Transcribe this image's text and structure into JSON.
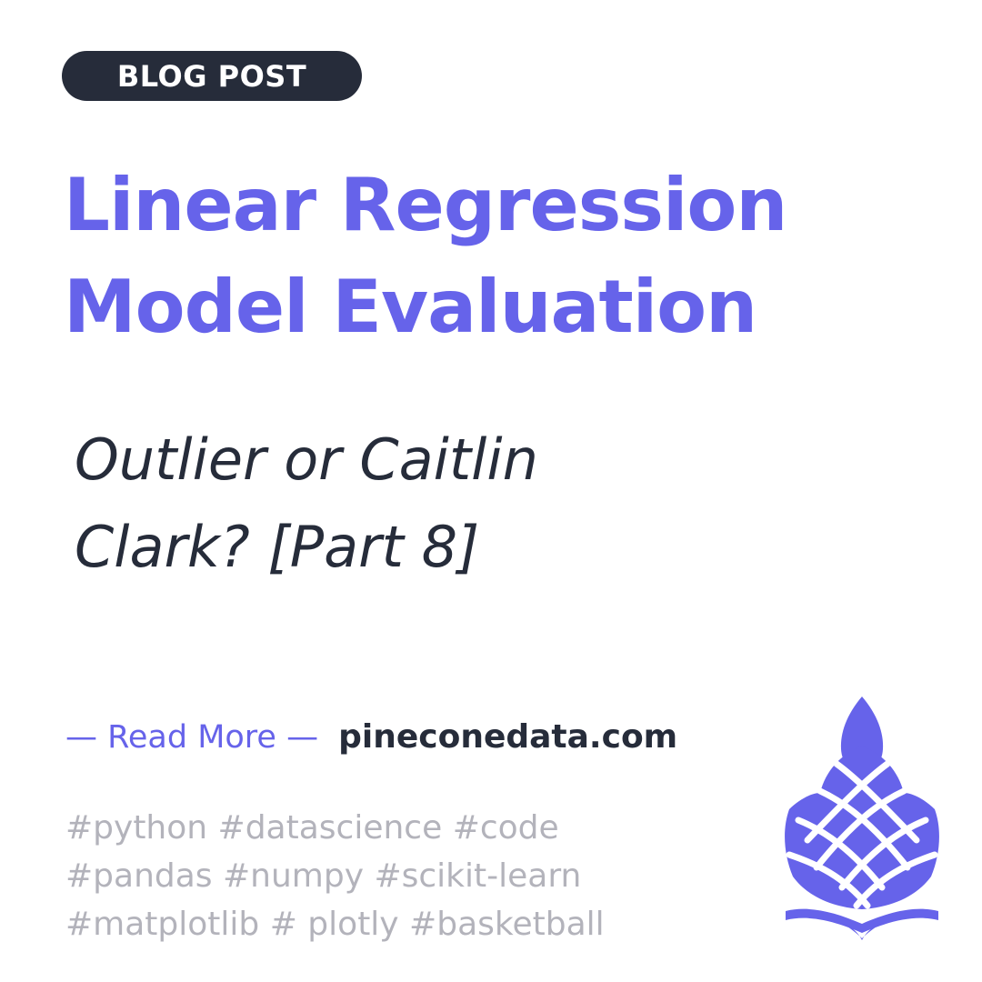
{
  "badge": {
    "label": "BLOG POST"
  },
  "title": {
    "line1": "Linear Regression",
    "line2": "Model Evaluation"
  },
  "subtitle": {
    "line1": "Outlier or Caitlin",
    "line2": "Clark? [Part 8]"
  },
  "cta": {
    "label": "— Read More —",
    "site": "pineconedata.com"
  },
  "tags": {
    "line1": "#python  #datascience  #code",
    "line2": "#pandas #numpy #scikit-learn",
    "line3": "#matplotlib # plotly #basketball"
  },
  "logo": {
    "icon": "pinecone-icon",
    "color": "#6663ea"
  },
  "colors": {
    "accent": "#6663ea",
    "dark": "#262c3a",
    "muted": "#b3b3bb",
    "background": "#ffffff"
  }
}
